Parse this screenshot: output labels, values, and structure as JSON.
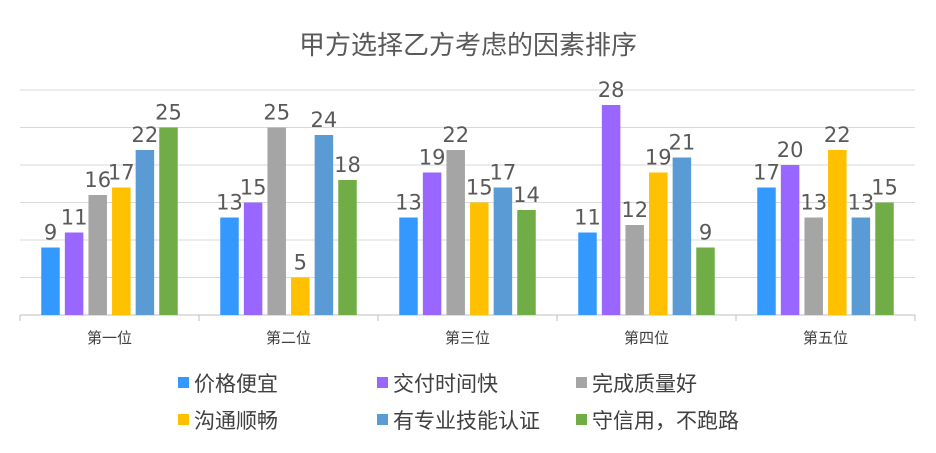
{
  "chart_data": {
    "type": "bar",
    "title": "甲方选择乙方考虑的因素排序",
    "xlabel": "",
    "ylabel": "",
    "ylim": [
      0,
      30
    ],
    "grid": true,
    "legend_position": "bottom",
    "categories": [
      "第一位",
      "第二位",
      "第三位",
      "第四位",
      "第五位"
    ],
    "series": [
      {
        "name": "价格便宜",
        "color": "#3399FF",
        "values": [
          9,
          13,
          13,
          11,
          17
        ]
      },
      {
        "name": "交付时间快",
        "color": "#9966FF",
        "values": [
          11,
          15,
          19,
          28,
          20
        ]
      },
      {
        "name": "完成质量好",
        "color": "#A5A5A5",
        "values": [
          16,
          25,
          22,
          12,
          13
        ]
      },
      {
        "name": "沟通顺畅",
        "color": "#FFC000",
        "values": [
          17,
          5,
          15,
          19,
          22
        ]
      },
      {
        "name": "有专业技能认证",
        "color": "#5B9BD5",
        "values": [
          22,
          24,
          17,
          21,
          13
        ]
      },
      {
        "name": "守信用，不跑路",
        "color": "#70AD47",
        "values": [
          25,
          18,
          14,
          9,
          15
        ]
      }
    ]
  }
}
